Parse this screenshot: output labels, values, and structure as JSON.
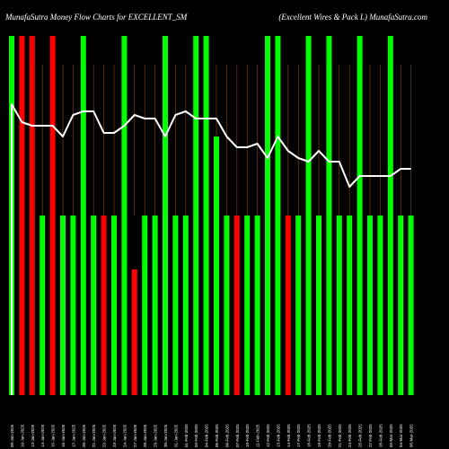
{
  "header": {
    "title_left": "MunafaSutra  Money Flow  Charts for EXCELLENT_SM",
    "title_right": "(Excellent Wires & Pack L) MunafaSutra.com"
  },
  "colors": {
    "background": "#000000",
    "up": "#00ff00",
    "down": "#ff0000",
    "divider": "#8b4513",
    "line": "#ffffff"
  },
  "chart_data": {
    "type": "bar",
    "ylim": [
      0,
      100
    ],
    "categories": [
      "09-Jan-2025",
      "10-Jan-2025",
      "13-Jan-2025",
      "14-Jan-2025",
      "15-Jan-2025",
      "16-Jan-2025",
      "17-Jan-2025",
      "20-Jan-2025",
      "21-Jan-2025",
      "22-Jan-2025",
      "23-Jan-2025",
      "24-Jan-2025",
      "27-Jan-2025",
      "28-Jan-2025",
      "29-Jan-2025",
      "30-Jan-2025",
      "31-Jan-2025",
      "01-Feb-2025",
      "03-Feb-2025",
      "04-Feb-2025",
      "05-Feb-2025",
      "06-Feb-2025",
      "07-Feb-2025",
      "10-Feb-2025",
      "11-Feb-2025",
      "12-Feb-2025",
      "13-Feb-2025",
      "14-Feb-2025",
      "17-Feb-2025",
      "18-Feb-2025",
      "19-Feb-2025",
      "20-Feb-2025",
      "21-Feb-2025",
      "24-Feb-2025",
      "25-Feb-2025",
      "27-Feb-2025",
      "28-Feb-2025",
      "03-Mar-2025",
      "04-Mar-2025",
      "05-Mar-2025"
    ],
    "bar_colors": [
      "up",
      "down",
      "down",
      "up",
      "down",
      "up",
      "up",
      "up",
      "up",
      "down",
      "up",
      "up",
      "down",
      "up",
      "up",
      "up",
      "up",
      "up",
      "up",
      "up",
      "up",
      "up",
      "down",
      "up",
      "up",
      "up",
      "up",
      "down",
      "up",
      "up",
      "up",
      "up",
      "up",
      "up",
      "up",
      "up",
      "up",
      "up",
      "up",
      "up"
    ],
    "values": [
      100,
      100,
      100,
      50,
      100,
      50,
      50,
      100,
      50,
      50,
      50,
      100,
      35,
      50,
      50,
      100,
      50,
      50,
      100,
      100,
      72,
      50,
      50,
      50,
      50,
      100,
      100,
      50,
      50,
      100,
      50,
      100,
      50,
      50,
      100,
      50,
      50,
      100,
      50,
      50
    ],
    "line": [
      81,
      76,
      75,
      75,
      75,
      72,
      78,
      79,
      79,
      73,
      73,
      75,
      78,
      77,
      77,
      72,
      78,
      79,
      77,
      77,
      77,
      72,
      69,
      69,
      70,
      66,
      72,
      68,
      66,
      65,
      68,
      65,
      65,
      58,
      61,
      61,
      61,
      61,
      63,
      63
    ]
  }
}
